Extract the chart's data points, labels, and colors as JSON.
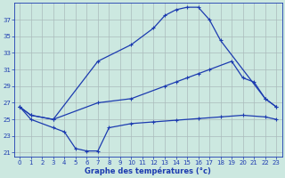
{
  "line1_x": [
    0,
    1,
    3,
    7,
    10,
    12,
    13,
    14,
    15,
    16,
    17,
    18,
    22,
    23
  ],
  "line1_y": [
    26.5,
    25.5,
    25.0,
    32.0,
    34.0,
    36.0,
    37.5,
    38.2,
    38.5,
    38.5,
    37.0,
    34.5,
    27.5,
    26.5
  ],
  "line2_x": [
    0,
    1,
    3,
    7,
    10,
    13,
    14,
    15,
    16,
    17,
    19,
    20,
    21,
    22,
    23
  ],
  "line2_y": [
    26.5,
    25.5,
    25.0,
    27.0,
    27.5,
    29.0,
    29.5,
    30.0,
    30.5,
    31.0,
    32.0,
    30.0,
    29.5,
    27.5,
    26.5
  ],
  "line3_x": [
    0,
    1,
    3,
    4,
    5,
    6,
    7,
    8,
    10,
    12,
    14,
    16,
    18,
    20,
    22,
    23
  ],
  "line3_y": [
    26.5,
    25.0,
    24.0,
    23.5,
    21.5,
    21.2,
    21.2,
    24.0,
    24.5,
    24.7,
    24.9,
    25.1,
    25.3,
    25.5,
    25.3,
    25.0
  ],
  "line_color": "#1c3bb0",
  "bg_color": "#cce8e0",
  "grid_color": "#aabbbb",
  "xlabel": "Graphe des températures (°c)",
  "xlabel_color": "#1c3bb0",
  "tick_color": "#1c3bb0",
  "ylim": [
    20.5,
    39.0
  ],
  "xlim": [
    -0.5,
    23.5
  ],
  "yticks": [
    21,
    23,
    25,
    27,
    29,
    31,
    33,
    35,
    37
  ],
  "xticks": [
    0,
    1,
    2,
    3,
    4,
    5,
    6,
    7,
    8,
    9,
    10,
    11,
    12,
    13,
    14,
    15,
    16,
    17,
    18,
    19,
    20,
    21,
    22,
    23
  ]
}
